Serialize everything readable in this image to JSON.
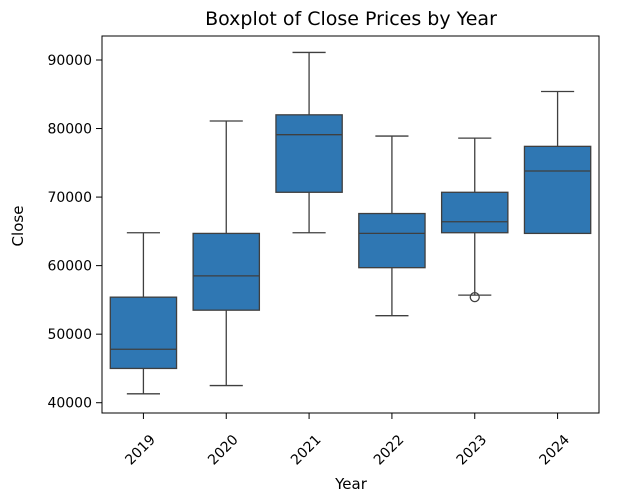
{
  "chart_data": {
    "type": "boxplot",
    "title": "Boxplot of Close Prices by Year",
    "xlabel": "Year",
    "ylabel": "Close",
    "ylim": [
      38500,
      93500
    ],
    "yticks": [
      40000,
      50000,
      60000,
      70000,
      80000,
      90000
    ],
    "ytick_labels": [
      "40000",
      "50000",
      "60000",
      "70000",
      "80000",
      "90000"
    ],
    "box_color": "#2f77b3",
    "line_color": "#3f3f3f",
    "categories": [
      "2019",
      "2020",
      "2021",
      "2022",
      "2023",
      "2024"
    ],
    "boxes": [
      {
        "year": "2019",
        "whisker_low": 41300,
        "q1": 45000,
        "median": 47800,
        "q3": 55400,
        "whisker_high": 64800,
        "outliers": []
      },
      {
        "year": "2020",
        "whisker_low": 42500,
        "q1": 53500,
        "median": 58500,
        "q3": 64700,
        "whisker_high": 81100,
        "outliers": []
      },
      {
        "year": "2021",
        "whisker_low": 64800,
        "q1": 70700,
        "median": 79100,
        "q3": 82000,
        "whisker_high": 91100,
        "outliers": []
      },
      {
        "year": "2022",
        "whisker_low": 52700,
        "q1": 59700,
        "median": 64700,
        "q3": 67600,
        "whisker_high": 78900,
        "outliers": []
      },
      {
        "year": "2023",
        "whisker_low": 55700,
        "q1": 64800,
        "median": 66400,
        "q3": 70700,
        "whisker_high": 78600,
        "outliers": [
          55400
        ]
      },
      {
        "year": "2024",
        "whisker_low": 64700,
        "q1": 64700,
        "median": 73800,
        "q3": 77400,
        "whisker_high": 85400,
        "outliers": []
      }
    ]
  }
}
